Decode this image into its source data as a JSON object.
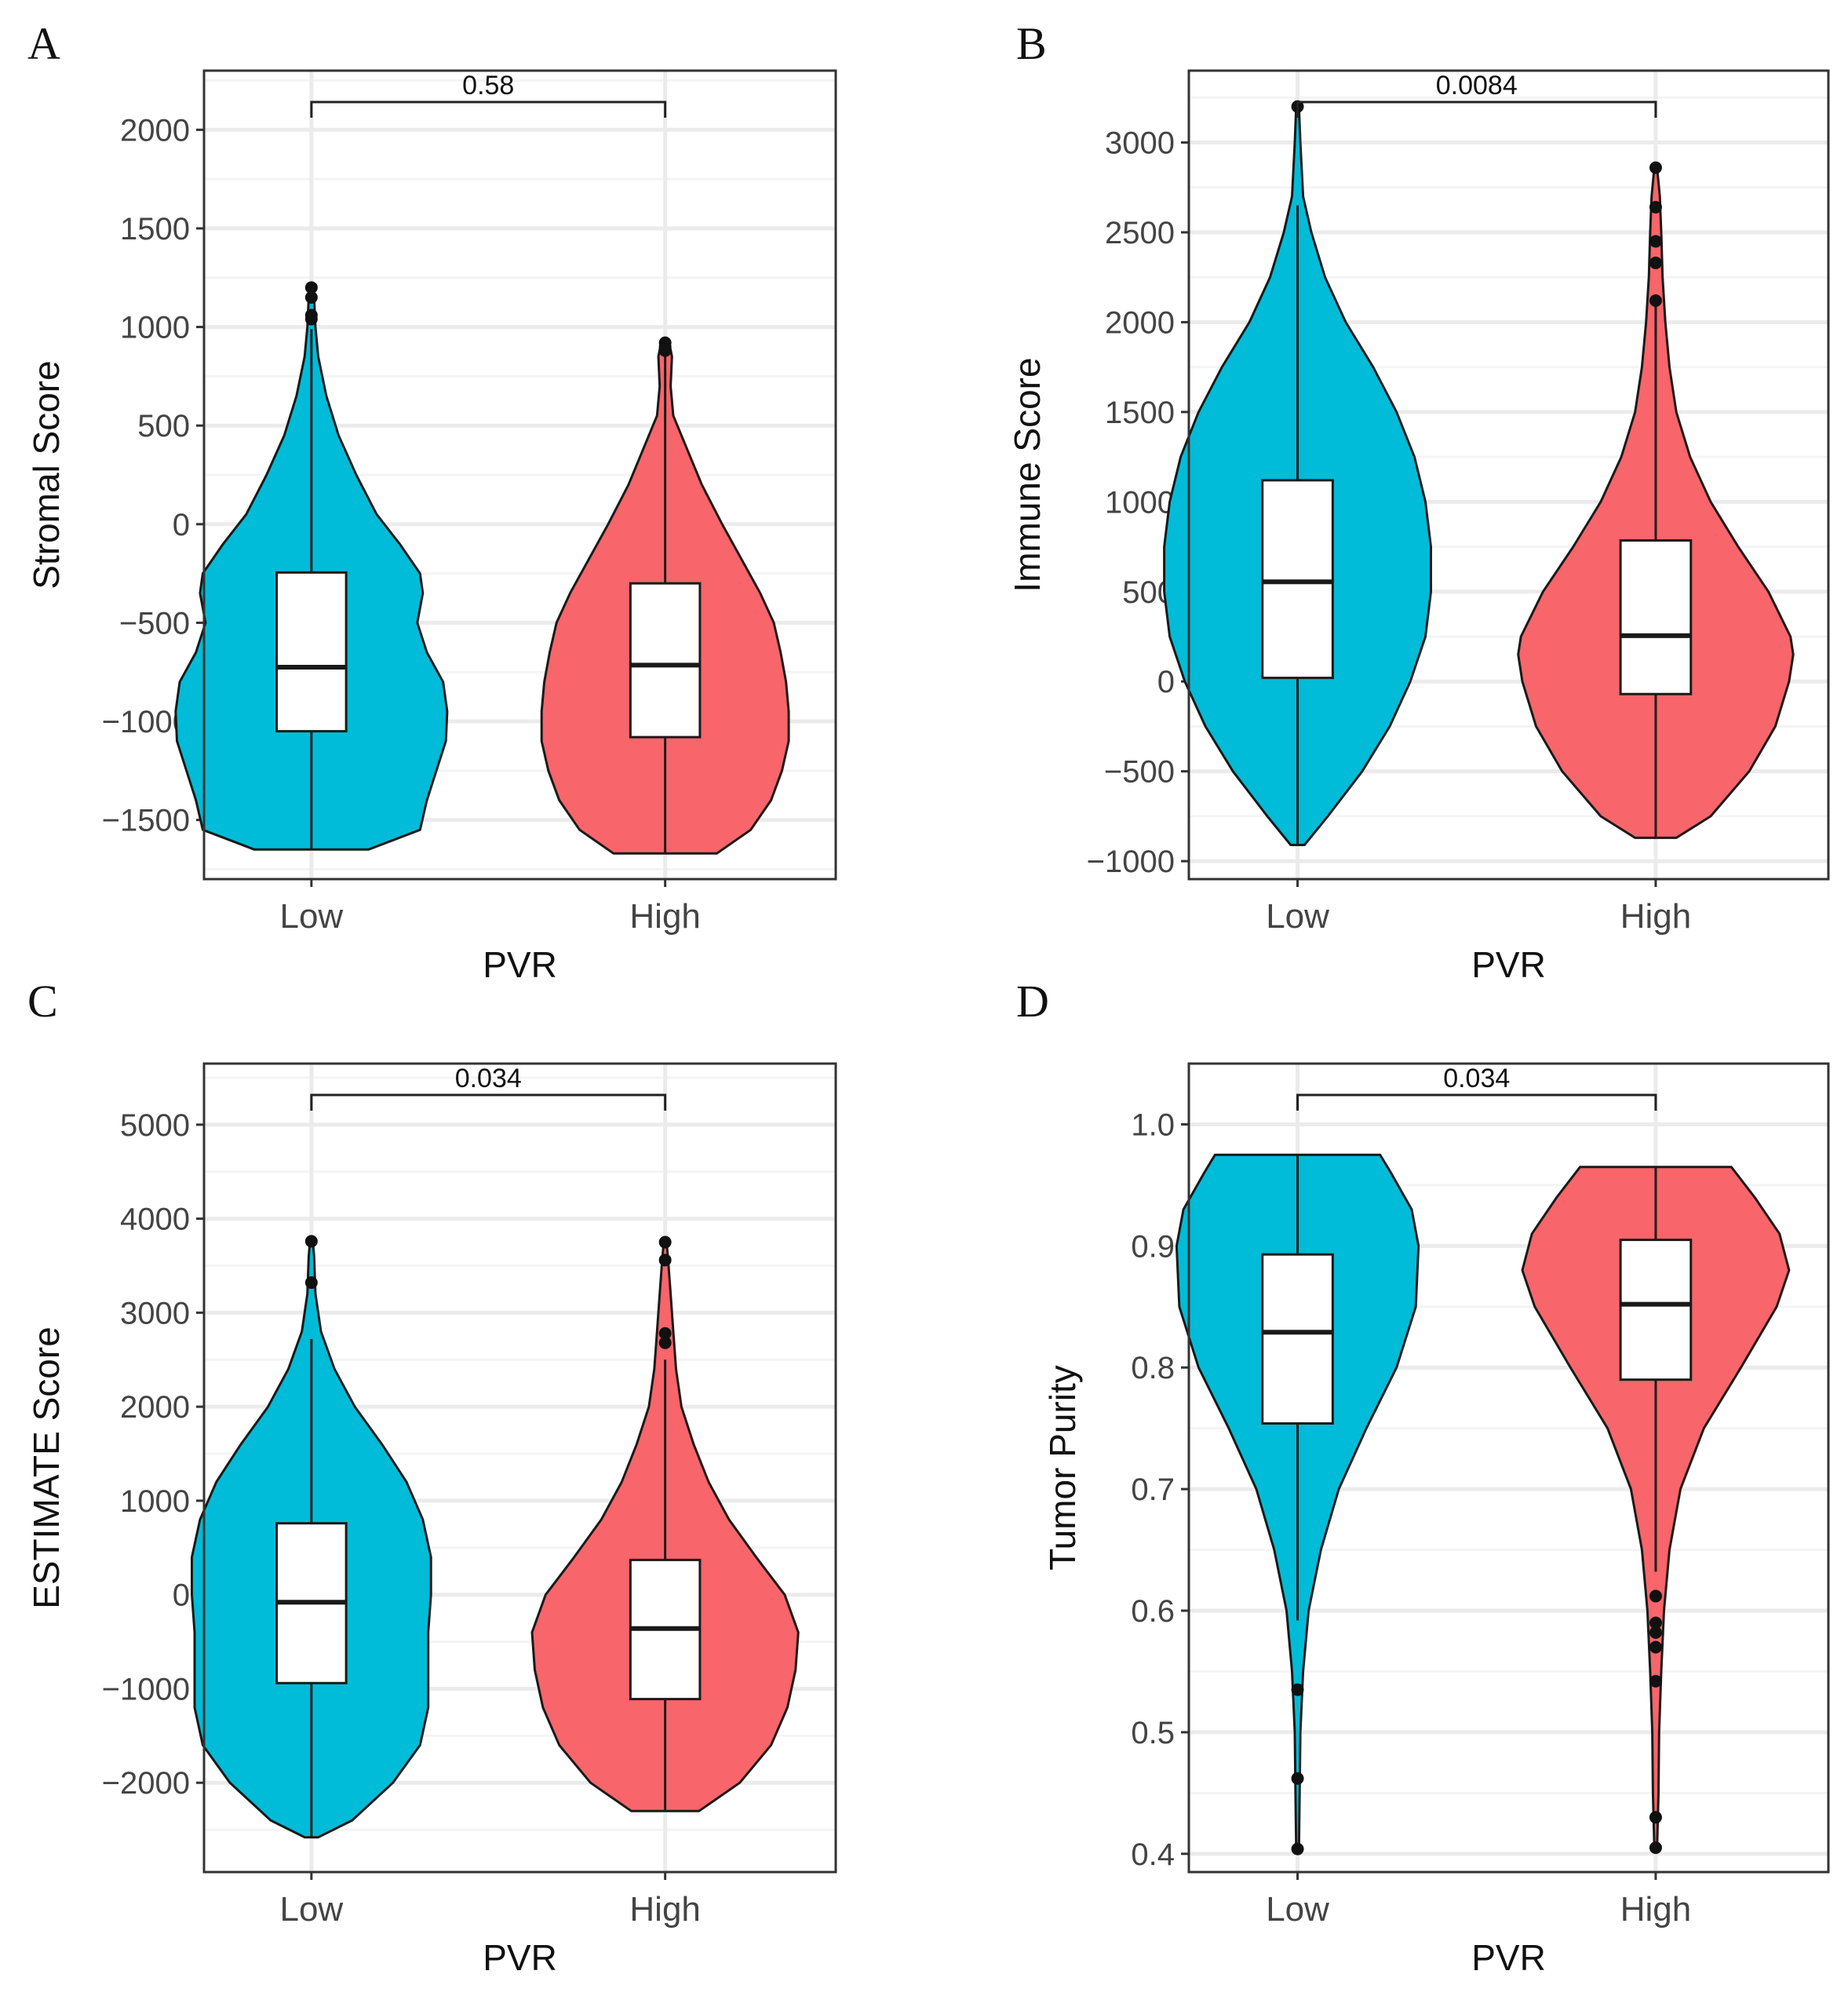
{
  "figure": {
    "x_axis_title": "PVR",
    "groups": [
      "Low",
      "High"
    ]
  },
  "colors": {
    "low": "#00BCD8",
    "high": "#F8656A",
    "outline": "#1a1a1a",
    "grid": "#EBEBEB",
    "box": "#ffffff"
  },
  "chart_data": [
    {
      "panel": "A",
      "type": "violin",
      "ylabel": "Stromal Score",
      "xlabel": "PVR",
      "categories": [
        "Low",
        "High"
      ],
      "ylim": [
        -1800,
        2300
      ],
      "yticks": [
        -1500,
        -1000,
        -500,
        0,
        500,
        1000,
        1500,
        2000
      ],
      "ytick_labels": [
        "−1500",
        "−1000",
        "−500",
        "0",
        "500",
        "1000",
        "1500",
        "2000"
      ],
      "pvalue": "0.58",
      "series": [
        {
          "name": "Low",
          "box": {
            "q1": -1050,
            "median": -725,
            "q3": -245,
            "whisker_low": -1650,
            "whisker_high": 990
          },
          "outliers": [
            1200,
            1150,
            1060,
            1040
          ],
          "density": [
            [
              -1650,
              0.42
            ],
            [
              -1550,
              0.8
            ],
            [
              -1400,
              0.85
            ],
            [
              -1250,
              0.92
            ],
            [
              -1100,
              0.99
            ],
            [
              -950,
              1
            ],
            [
              -800,
              0.97
            ],
            [
              -650,
              0.85
            ],
            [
              -500,
              0.78
            ],
            [
              -350,
              0.82
            ],
            [
              -250,
              0.8
            ],
            [
              -100,
              0.65
            ],
            [
              50,
              0.48
            ],
            [
              250,
              0.33
            ],
            [
              450,
              0.2
            ],
            [
              650,
              0.11
            ],
            [
              850,
              0.05
            ],
            [
              1000,
              0.03
            ],
            [
              1150,
              0.02
            ],
            [
              1200,
              0.01
            ]
          ]
        },
        {
          "name": "High",
          "box": {
            "q1": -1080,
            "median": -715,
            "q3": -300,
            "whisker_low": -1670,
            "whisker_high": 870
          },
          "outliers": [
            920,
            900,
            880
          ],
          "density": [
            [
              -1670,
              0.38
            ],
            [
              -1550,
              0.63
            ],
            [
              -1400,
              0.78
            ],
            [
              -1250,
              0.86
            ],
            [
              -1100,
              0.91
            ],
            [
              -950,
              0.91
            ],
            [
              -800,
              0.89
            ],
            [
              -650,
              0.85
            ],
            [
              -500,
              0.8
            ],
            [
              -350,
              0.7
            ],
            [
              -200,
              0.58
            ],
            [
              0,
              0.42
            ],
            [
              200,
              0.27
            ],
            [
              400,
              0.15
            ],
            [
              550,
              0.06
            ],
            [
              700,
              0.04
            ],
            [
              850,
              0.05
            ],
            [
              920,
              0.03
            ]
          ]
        }
      ]
    },
    {
      "panel": "B",
      "type": "violin",
      "ylabel": "Immune Score",
      "xlabel": "PVR",
      "categories": [
        "Low",
        "High"
      ],
      "ylim": [
        -1100,
        3400
      ],
      "yticks": [
        -1000,
        -500,
        0,
        500,
        1000,
        1500,
        2000,
        2500,
        3000
      ],
      "ytick_labels": [
        "−1000",
        "−500",
        "0",
        "500",
        "1000",
        "1500",
        "2000",
        "2500",
        "3000"
      ],
      "pvalue": "0.0084",
      "series": [
        {
          "name": "Low",
          "box": {
            "q1": 20,
            "median": 555,
            "q3": 1120,
            "whisker_low": -910,
            "whisker_high": 2650
          },
          "outliers": [
            3200
          ],
          "density": [
            [
              -910,
              0.05
            ],
            [
              -750,
              0.22
            ],
            [
              -500,
              0.47
            ],
            [
              -250,
              0.67
            ],
            [
              0,
              0.82
            ],
            [
              250,
              0.93
            ],
            [
              500,
              0.97
            ],
            [
              750,
              0.97
            ],
            [
              1000,
              0.93
            ],
            [
              1250,
              0.85
            ],
            [
              1500,
              0.72
            ],
            [
              1750,
              0.55
            ],
            [
              2000,
              0.35
            ],
            [
              2250,
              0.2
            ],
            [
              2500,
              0.1
            ],
            [
              2700,
              0.04
            ],
            [
              3000,
              0.02
            ],
            [
              3200,
              0.01
            ]
          ]
        },
        {
          "name": "High",
          "box": {
            "q1": -70,
            "median": 255,
            "q3": 785,
            "whisker_low": -870,
            "whisker_high": 2100
          },
          "outliers": [
            2860,
            2640,
            2450,
            2330,
            2120
          ],
          "density": [
            [
              -870,
              0.15
            ],
            [
              -750,
              0.4
            ],
            [
              -500,
              0.68
            ],
            [
              -250,
              0.87
            ],
            [
              0,
              0.97
            ],
            [
              150,
              1
            ],
            [
              250,
              0.98
            ],
            [
              500,
              0.82
            ],
            [
              750,
              0.6
            ],
            [
              1000,
              0.4
            ],
            [
              1250,
              0.25
            ],
            [
              1500,
              0.15
            ],
            [
              1750,
              0.1
            ],
            [
              2000,
              0.07
            ],
            [
              2250,
              0.05
            ],
            [
              2500,
              0.04
            ],
            [
              2700,
              0.03
            ],
            [
              2860,
              0.01
            ]
          ]
        }
      ]
    },
    {
      "panel": "C",
      "type": "violin",
      "ylabel": "ESTIMATE Score",
      "xlabel": "PVR",
      "categories": [
        "Low",
        "High"
      ],
      "ylim": [
        -2950,
        5650
      ],
      "yticks": [
        -2000,
        -1000,
        0,
        1000,
        2000,
        3000,
        4000,
        5000
      ],
      "ytick_labels": [
        "−2000",
        "−1000",
        "0",
        "1000",
        "2000",
        "3000",
        "4000",
        "5000"
      ],
      "pvalue": "0.034",
      "series": [
        {
          "name": "Low",
          "box": {
            "q1": -940,
            "median": -80,
            "q3": 760,
            "whisker_low": -2580,
            "whisker_high": 2720
          },
          "outliers": [
            3760,
            3320
          ],
          "density": [
            [
              -2580,
              0.05
            ],
            [
              -2400,
              0.3
            ],
            [
              -2000,
              0.6
            ],
            [
              -1600,
              0.8
            ],
            [
              -1200,
              0.86
            ],
            [
              -800,
              0.86
            ],
            [
              -400,
              0.86
            ],
            [
              0,
              0.88
            ],
            [
              400,
              0.88
            ],
            [
              800,
              0.82
            ],
            [
              1200,
              0.7
            ],
            [
              1600,
              0.52
            ],
            [
              2000,
              0.32
            ],
            [
              2400,
              0.17
            ],
            [
              2800,
              0.07
            ],
            [
              3200,
              0.03
            ],
            [
              3600,
              0.02
            ],
            [
              3760,
              0.01
            ]
          ]
        },
        {
          "name": "High",
          "box": {
            "q1": -1110,
            "median": -360,
            "q3": 370,
            "whisker_low": -2300,
            "whisker_high": 2500
          },
          "outliers": [
            3750,
            3560,
            2780,
            2680
          ],
          "density": [
            [
              -2300,
              0.25
            ],
            [
              -2000,
              0.55
            ],
            [
              -1600,
              0.78
            ],
            [
              -1200,
              0.9
            ],
            [
              -800,
              0.96
            ],
            [
              -400,
              0.98
            ],
            [
              0,
              0.88
            ],
            [
              400,
              0.67
            ],
            [
              800,
              0.47
            ],
            [
              1200,
              0.32
            ],
            [
              1600,
              0.21
            ],
            [
              2000,
              0.12
            ],
            [
              2400,
              0.08
            ],
            [
              2800,
              0.06
            ],
            [
              3200,
              0.04
            ],
            [
              3600,
              0.02
            ],
            [
              3750,
              0.01
            ]
          ]
        }
      ]
    },
    {
      "panel": "D",
      "type": "violin",
      "ylabel": "Tumor Purity",
      "xlabel": "PVR",
      "categories": [
        "Low",
        "High"
      ],
      "ylim": [
        0.385,
        1.05
      ],
      "yticks": [
        0.4,
        0.5,
        0.6,
        0.7,
        0.8,
        0.9,
        1.0
      ],
      "ytick_labels": [
        "0.4",
        "0.5",
        "0.6",
        "0.7",
        "0.8",
        "0.9",
        "1.0"
      ],
      "pvalue": "0.034",
      "series": [
        {
          "name": "Low",
          "box": {
            "q1": 0.754,
            "median": 0.829,
            "q3": 0.893,
            "whisker_low": 0.592,
            "whisker_high": 0.975
          },
          "outliers": [
            0.535,
            0.462,
            0.404
          ],
          "density": [
            [
              0.404,
              0.01
            ],
            [
              0.45,
              0.015
            ],
            [
              0.5,
              0.02
            ],
            [
              0.55,
              0.04
            ],
            [
              0.6,
              0.08
            ],
            [
              0.65,
              0.17
            ],
            [
              0.7,
              0.3
            ],
            [
              0.75,
              0.5
            ],
            [
              0.8,
              0.72
            ],
            [
              0.85,
              0.86
            ],
            [
              0.9,
              0.88
            ],
            [
              0.93,
              0.83
            ],
            [
              0.96,
              0.68
            ],
            [
              0.975,
              0.6
            ]
          ]
        },
        {
          "name": "High",
          "box": {
            "q1": 0.79,
            "median": 0.852,
            "q3": 0.905,
            "whisker_low": 0.632,
            "whisker_high": 0.965
          },
          "outliers": [
            0.612,
            0.59,
            0.582,
            0.57,
            0.542,
            0.43,
            0.405
          ],
          "density": [
            [
              0.405,
              0.01
            ],
            [
              0.45,
              0.02
            ],
            [
              0.5,
              0.025
            ],
            [
              0.55,
              0.04
            ],
            [
              0.6,
              0.06
            ],
            [
              0.65,
              0.1
            ],
            [
              0.7,
              0.18
            ],
            [
              0.75,
              0.35
            ],
            [
              0.8,
              0.62
            ],
            [
              0.85,
              0.88
            ],
            [
              0.88,
              0.97
            ],
            [
              0.91,
              0.9
            ],
            [
              0.94,
              0.72
            ],
            [
              0.965,
              0.55
            ]
          ]
        }
      ]
    }
  ]
}
